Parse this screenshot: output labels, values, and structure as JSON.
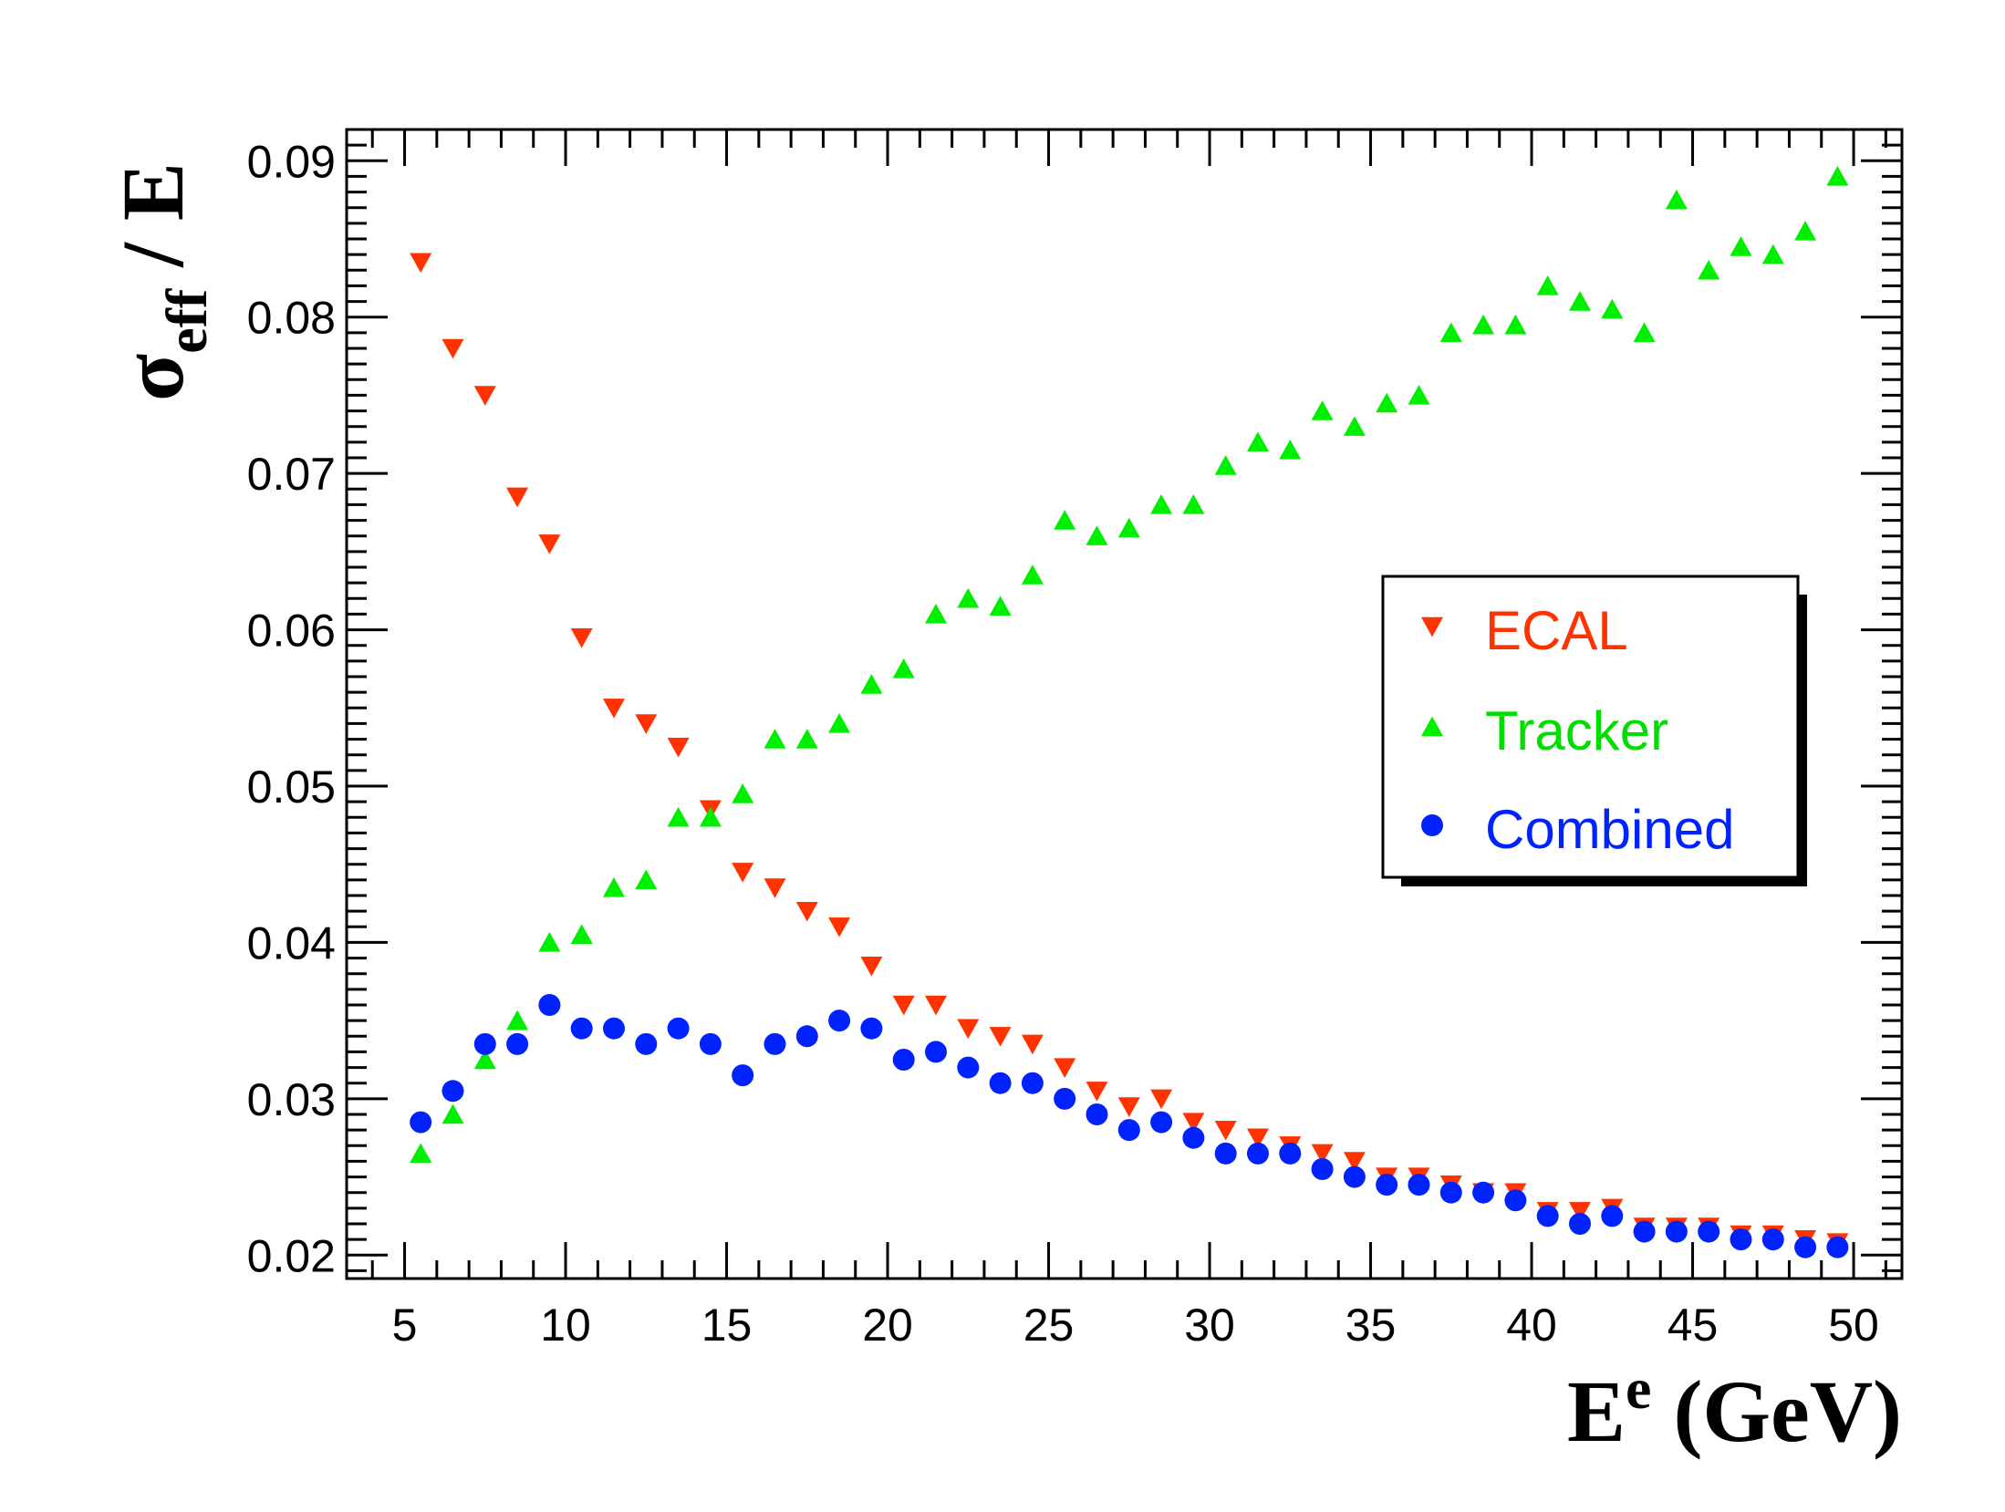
{
  "chart_data": {
    "type": "scatter",
    "xlabel": "E^e (GeV)",
    "ylabel": "σ_eff / E",
    "xlim": [
      3.2,
      51.5
    ],
    "ylim": [
      0.0185,
      0.092
    ],
    "x_ticks": [
      5,
      10,
      15,
      20,
      25,
      30,
      35,
      40,
      45,
      50
    ],
    "y_ticks": [
      0.02,
      0.03,
      0.04,
      0.05,
      0.06,
      0.07,
      0.08,
      0.09
    ],
    "x_tick_labels": [
      "5",
      "10",
      "15",
      "20",
      "25",
      "30",
      "35",
      "40",
      "45",
      "50"
    ],
    "y_tick_labels": [
      "0.02",
      "0.03",
      "0.04",
      "0.05",
      "0.06",
      "0.07",
      "0.08",
      "0.09"
    ],
    "axis_title": {
      "y": {
        "main": "σ",
        "sub": "eff",
        "rest": " / E"
      },
      "x": {
        "main": "E",
        "sup": "e",
        "rest": " (GeV)"
      }
    },
    "legend_position": "right-center",
    "x": [
      5.5,
      6.5,
      7.5,
      8.5,
      9.5,
      10.5,
      11.5,
      12.5,
      13.5,
      14.5,
      15.5,
      16.5,
      17.5,
      18.5,
      19.5,
      20.5,
      21.5,
      22.5,
      23.5,
      24.5,
      25.5,
      26.5,
      27.5,
      28.5,
      29.5,
      30.5,
      31.5,
      32.5,
      33.5,
      34.5,
      35.5,
      36.5,
      37.5,
      38.5,
      39.5,
      40.5,
      41.5,
      42.5,
      43.5,
      44.5,
      45.5,
      46.5,
      47.5,
      48.5,
      49.5
    ],
    "series": [
      {
        "name": "ECAL",
        "marker": "triangle-down",
        "color": "#ff3300",
        "values": [
          0.0835,
          0.078,
          0.075,
          0.0685,
          0.0655,
          0.0595,
          0.055,
          0.054,
          0.0525,
          0.0485,
          0.0445,
          0.0435,
          0.042,
          0.041,
          0.0385,
          0.036,
          0.036,
          0.0345,
          0.034,
          0.0335,
          0.032,
          0.0305,
          0.0295,
          0.03,
          0.0285,
          0.028,
          0.0275,
          0.027,
          0.0265,
          0.026,
          0.025,
          0.025,
          0.0245,
          0.024,
          0.024,
          0.0228,
          0.0228,
          0.023,
          0.0218,
          0.0218,
          0.0218,
          0.0213,
          0.0213,
          0.021,
          0.0208
        ]
      },
      {
        "name": "Tracker",
        "marker": "triangle-up",
        "color": "#00ee00",
        "values": [
          0.0265,
          0.029,
          0.0325,
          0.035,
          0.04,
          0.0405,
          0.0435,
          0.044,
          0.048,
          0.048,
          0.0495,
          0.053,
          0.053,
          0.054,
          0.0565,
          0.0575,
          0.061,
          0.062,
          0.0615,
          0.0635,
          0.067,
          0.066,
          0.0665,
          0.068,
          0.068,
          0.0705,
          0.072,
          0.0715,
          0.074,
          0.073,
          0.0745,
          0.075,
          0.079,
          0.0795,
          0.0795,
          0.082,
          0.081,
          0.0805,
          0.079,
          0.0875,
          0.083,
          0.0845,
          0.084,
          0.0855,
          0.089
        ]
      },
      {
        "name": "Combined",
        "marker": "circle",
        "color": "#0022ff",
        "values": [
          0.0285,
          0.0305,
          0.0335,
          0.0335,
          0.036,
          0.0345,
          0.0345,
          0.0335,
          0.0345,
          0.0335,
          0.0315,
          0.0335,
          0.034,
          0.035,
          0.0345,
          0.0325,
          0.033,
          0.032,
          0.031,
          0.031,
          0.03,
          0.029,
          0.028,
          0.0285,
          0.0275,
          0.0265,
          0.0265,
          0.0265,
          0.0255,
          0.025,
          0.0245,
          0.0245,
          0.024,
          0.024,
          0.0235,
          0.0225,
          0.022,
          0.0225,
          0.0215,
          0.0215,
          0.0215,
          0.021,
          0.021,
          0.0205,
          0.0205
        ]
      }
    ]
  }
}
